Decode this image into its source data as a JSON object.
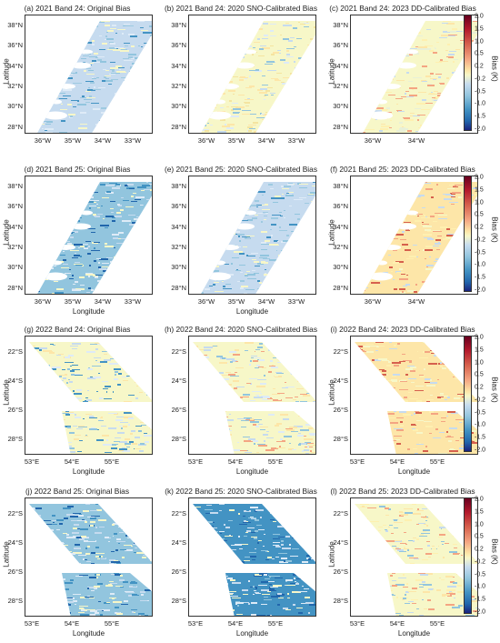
{
  "panels": [
    {
      "title": "(a) 2021 Band 24: Original Bias",
      "xlabel": "",
      "ylabel": "Latitude",
      "yticks": [
        "38°N",
        "36°N",
        "34°N",
        "32°N",
        "30°N",
        "28°N"
      ],
      "xticks": [
        "36°W",
        "35°W",
        "34°W",
        "33°W"
      ],
      "colorbar": false
    },
    {
      "title": "(b) 2021 Band 24: 2020 SNO-Calibrated Bias",
      "xlabel": "",
      "ylabel": "",
      "yticks": [
        "38°N",
        "36°N",
        "34°N",
        "32°N",
        "30°N",
        "28°N"
      ],
      "xticks": [
        "36°W",
        "35°W",
        "34°W",
        "33°W"
      ],
      "colorbar": false
    },
    {
      "title": "(c) 2021 Band 24: 2023 DD-Calibrated Bias",
      "xlabel": "",
      "ylabel": "Latitude",
      "yticks": [
        "38°N",
        "36°N",
        "34°N",
        "32°N",
        "30°N",
        "28°N"
      ],
      "xticks": [
        "36°W",
        "34°W"
      ],
      "colorbar": true
    },
    {
      "title": "(d) 2021 Band 25: Original Bias",
      "xlabel": "Longitude",
      "ylabel": "Latitude",
      "yticks": [
        "38°N",
        "36°N",
        "34°N",
        "32°N",
        "30°N",
        "28°N"
      ],
      "xticks": [
        "36°W",
        "35°W",
        "34°W",
        "33°W"
      ],
      "colorbar": false
    },
    {
      "title": "(e) 2021 Band 25: 2020 SNO-Calibrated Bias",
      "xlabel": "Longitude",
      "ylabel": "",
      "yticks": [
        "38°N",
        "36°N",
        "34°N",
        "32°N",
        "30°N",
        "28°N"
      ],
      "xticks": [
        "36°W",
        "35°W",
        "34°W",
        "33°W"
      ],
      "colorbar": false
    },
    {
      "title": "(f) 2021 Band 25: 2023 DD-Calibrated Bias",
      "xlabel": "",
      "ylabel": "Latitude",
      "yticks": [
        "38°N",
        "36°N",
        "34°N",
        "32°N",
        "30°N",
        "28°N"
      ],
      "xticks": [
        "36°W",
        "34°W"
      ],
      "colorbar": true
    },
    {
      "title": "(g) 2022 Band 24: Original Bias",
      "xlabel": "Longitude",
      "ylabel": "Latitude",
      "yticks": [
        "22°S",
        "24°S",
        "26°S",
        "28°S"
      ],
      "xticks": [
        "53°E",
        "54°E",
        "55°E"
      ],
      "colorbar": false
    },
    {
      "title": "(h) 2022 Band 24: 2020 SNO-Calibrated Bias",
      "xlabel": "Longitude",
      "ylabel": "",
      "yticks": [
        "22°S",
        "24°S",
        "26°S",
        "28°S"
      ],
      "xticks": [
        "53°E",
        "54°E",
        "55°E"
      ],
      "colorbar": false
    },
    {
      "title": "(i) 2022 Band 24: 2023 DD-Calibrated Bias",
      "xlabel": "Longitude",
      "ylabel": "Latitude",
      "yticks": [
        "22°S",
        "24°S",
        "26°S",
        "28°S"
      ],
      "xticks": [
        "53°E",
        "54°E",
        "55°E"
      ],
      "colorbar": true
    },
    {
      "title": "(j) 2022 Band 25: Original Bias",
      "xlabel": "Longitude",
      "ylabel": "Latitude",
      "yticks": [
        "22°S",
        "24°S",
        "26°S",
        "28°S"
      ],
      "xticks": [
        "53°E",
        "54°E",
        "55°E"
      ],
      "colorbar": false
    },
    {
      "title": "(k) 2022 Band 25: 2020 SNO-Calibrated Bias",
      "xlabel": "Longitude",
      "ylabel": "",
      "yticks": [
        "22°S",
        "24°S",
        "26°S",
        "28°S"
      ],
      "xticks": [
        "53°E",
        "54°E",
        "55°E"
      ],
      "colorbar": false
    },
    {
      "title": "(l) 2022 Band 25: 2023 DD-Calibrated Bias",
      "xlabel": "Longitude",
      "ylabel": "Latitude",
      "yticks": [
        "22°S",
        "24°S",
        "26°S",
        "28°S"
      ],
      "xticks": [
        "53°E",
        "54°E",
        "55°E"
      ],
      "colorbar": true
    }
  ],
  "colorbar": {
    "label": "Bias (K)",
    "ticks": [
      "2.0",
      "1.5",
      "1.0",
      "0.5",
      "0.2",
      "-0.2",
      "-0.5",
      "-1.0",
      "-1.5",
      "-2.0"
    ],
    "colors": [
      "#67001f",
      "#b2182b",
      "#d6604d",
      "#f4a582",
      "#fde6a8",
      "#f7f7c8",
      "#c6dbef",
      "#92c5de",
      "#4393c3",
      "#2166ac",
      "#1a237e"
    ]
  }
}
